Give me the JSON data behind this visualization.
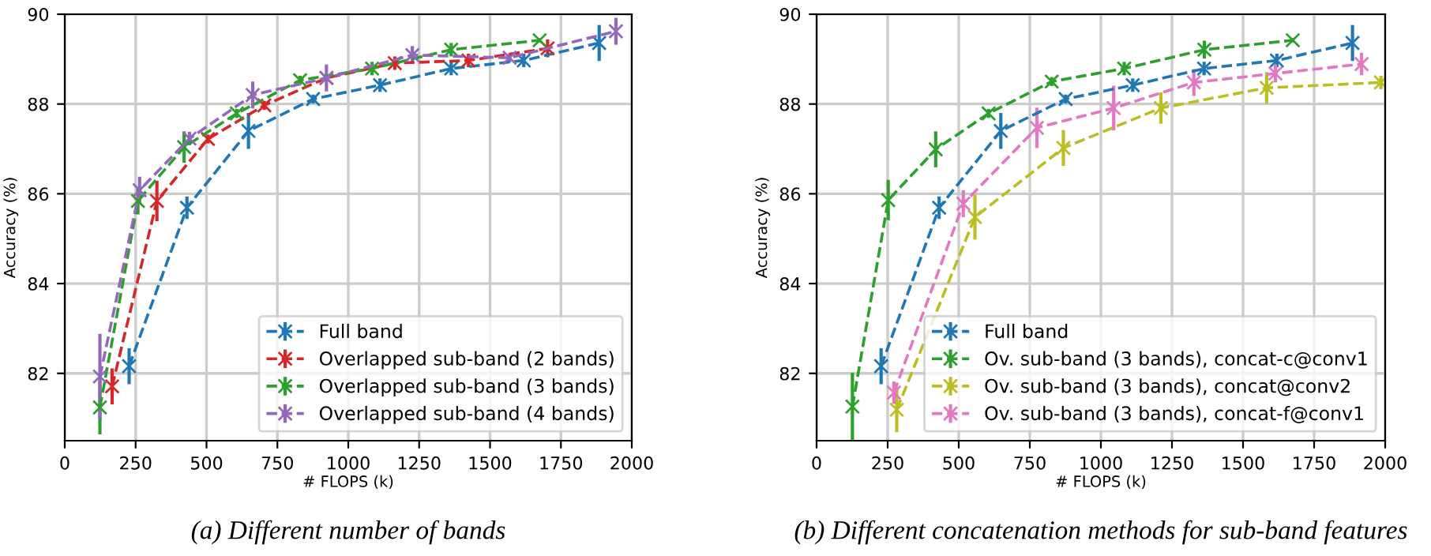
{
  "chart_data": [
    {
      "type": "line",
      "xlabel": "# FLOPS (k)",
      "ylabel": "Accuracy (%)",
      "xlim": [
        0,
        2000
      ],
      "ylim": [
        80.5,
        90
      ],
      "xticks": [
        0,
        250,
        500,
        750,
        1000,
        1250,
        1500,
        1750,
        2000
      ],
      "yticks": [
        82,
        84,
        86,
        88,
        90
      ],
      "grid": true,
      "legend": "bottom right",
      "marker": "cross",
      "line_style": "dashed",
      "annotations": [
        "(a) Different number of bands"
      ],
      "series": [
        {
          "name": "Full band",
          "color": "#1f77b4",
          "x": [
            227,
            431,
            648,
            876,
            1112,
            1363,
            1619,
            1885
          ],
          "values": [
            82.16,
            85.69,
            87.4,
            88.11,
            88.42,
            88.79,
            88.97,
            89.36
          ],
          "errors": [
            0.4,
            0.25,
            0.4,
            0.1,
            0.15,
            0.15,
            0.15,
            0.4
          ]
        },
        {
          "name": "Overlapped sub-band (2 bands)",
          "color": "#d62728",
          "x": [
            167,
            325,
            505,
            704,
            923,
            1164,
            1424,
            1703
          ],
          "values": [
            81.71,
            85.84,
            87.22,
            87.97,
            88.58,
            88.91,
            88.97,
            89.24
          ],
          "errors": [
            0.4,
            0.45,
            0.1,
            0.1,
            null,
            0.15,
            0.15,
            0.2
          ]
        },
        {
          "name": "Overlapped sub-band (3 bands)",
          "color": "#2ca02c",
          "x": [
            124,
            258,
            421,
            607,
            830,
            1084,
            1363,
            1675
          ],
          "values": [
            81.24,
            85.84,
            87.04,
            87.79,
            88.53,
            88.79,
            89.21,
            89.42
          ],
          "errors": [
            0.6,
            0.3,
            0.35,
            0.1,
            0.1,
            0.15,
            0.15,
            0.05
          ]
        },
        {
          "name": "Overlapped sub-band (4 bands)",
          "color": "#9467bd",
          "x": [
            124,
            264,
            440,
            663,
            923,
            1226,
            1569,
            1944
          ],
          "values": [
            81.93,
            86.08,
            87.23,
            88.2,
            88.58,
            89.09,
            89.03,
            89.62
          ],
          "errors": [
            0.95,
            0.3,
            0.15,
            0.3,
            0.3,
            0.2,
            0.1,
            0.3
          ]
        }
      ]
    },
    {
      "type": "line",
      "xlabel": "# FLOPS (k)",
      "ylabel": "Accuracy (%)",
      "xlim": [
        0,
        2000
      ],
      "ylim": [
        80.5,
        90
      ],
      "xticks": [
        0,
        250,
        500,
        750,
        1000,
        1250,
        1500,
        1750,
        2000
      ],
      "yticks": [
        82,
        84,
        86,
        88,
        90
      ],
      "grid": true,
      "legend": "bottom right",
      "marker": "cross",
      "line_style": "dashed",
      "annotations": [
        "(b) Different concatenation methods for sub-band features"
      ],
      "series": [
        {
          "name": "Full band",
          "color": "#1f77b4",
          "x": [
            227,
            431,
            648,
            876,
            1112,
            1363,
            1619,
            1885
          ],
          "values": [
            82.16,
            85.69,
            87.4,
            88.11,
            88.42,
            88.79,
            88.97,
            89.36
          ],
          "errors": [
            0.4,
            0.25,
            0.4,
            0.1,
            0.15,
            0.15,
            0.15,
            0.4
          ]
        },
        {
          "name": "Ov. sub-band (3 bands), concat-c@conv1",
          "color": "#2ca02c",
          "x": [
            126,
            252,
            419,
            605,
            827,
            1082,
            1364,
            1675
          ],
          "values": [
            81.26,
            85.86,
            86.99,
            87.79,
            88.5,
            88.79,
            89.21,
            89.42
          ],
          "errors": [
            0.75,
            0.45,
            0.4,
            0.1,
            0.1,
            0.15,
            0.2,
            0.05
          ]
        },
        {
          "name": "Ov. sub-band (3 bands), concat@conv2",
          "color": "#bcbd22",
          "x": [
            282,
            557,
            868,
            1211,
            1583,
            1985
          ],
          "values": [
            81.19,
            85.48,
            87.02,
            87.91,
            88.36,
            88.48
          ],
          "errors": [
            0.5,
            0.5,
            0.4,
            0.35,
            0.35,
            0.15
          ]
        },
        {
          "name": "Ov. sub-band (3 bands), concat-f@conv1",
          "color": "#e377c2",
          "x": [
            272,
            516,
            775,
            1045,
            1327,
            1614,
            1917
          ],
          "values": [
            81.57,
            85.78,
            87.47,
            87.91,
            88.48,
            88.68,
            88.89
          ],
          "errors": [
            0.25,
            0.3,
            0.45,
            0.5,
            0.3,
            0.2,
            0.25
          ]
        }
      ]
    }
  ]
}
